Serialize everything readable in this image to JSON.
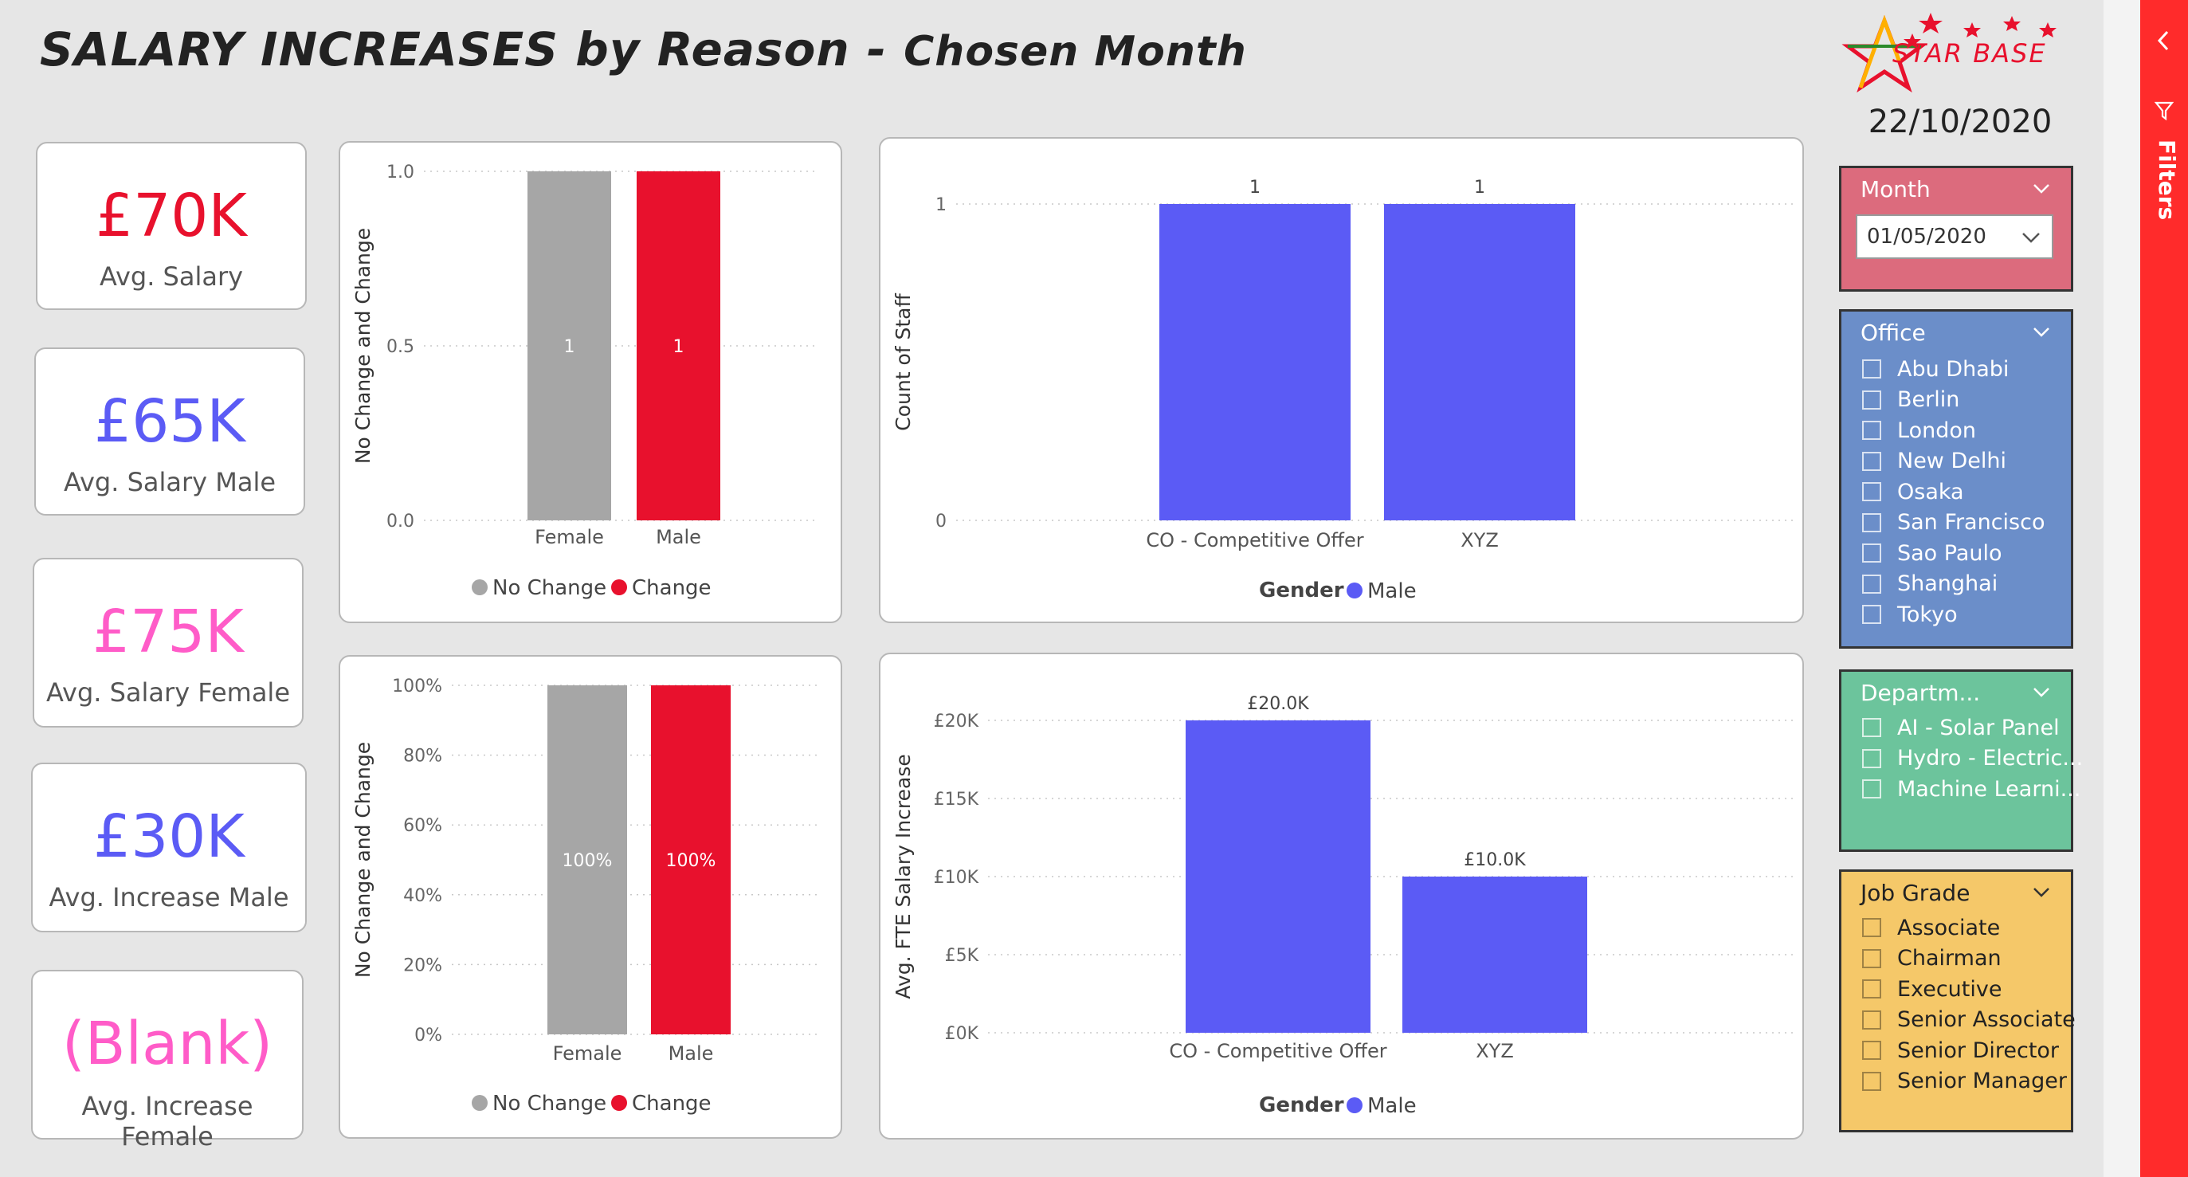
{
  "title": {
    "main": "SALARY INCREASES by Reason - ",
    "sub": "Chosen Month"
  },
  "logo": {
    "text": "STAR BASE"
  },
  "report_date": "22/10/2020",
  "kpis": [
    {
      "value": "£70K",
      "label": "Avg. Salary",
      "color": "#e8112d"
    },
    {
      "value": "£65K",
      "label": "Avg. Salary Male",
      "color": "#5b5bf5"
    },
    {
      "value": "£75K",
      "label": "Avg. Salary Female",
      "color": "#ff5cc8"
    },
    {
      "value": "£30K",
      "label": "Avg. Increase Male",
      "color": "#5b5bf5"
    },
    {
      "value": "(Blank)",
      "label": "Avg. Increase Female",
      "color": "#ff5cc8"
    }
  ],
  "chart_data": [
    {
      "type": "bar",
      "categories": [
        "Female",
        "Male"
      ],
      "values": [
        1,
        1
      ],
      "bar_colors": [
        "#a6a6a6",
        "#e8112d"
      ],
      "data_labels": [
        "1",
        "1"
      ],
      "ylabel": "No Change and Change",
      "yticks": [
        "1.0",
        "0.5",
        "0.0"
      ],
      "ylim": [
        0,
        1
      ],
      "legend": [
        {
          "name": "No Change",
          "color": "#a6a6a6"
        },
        {
          "name": "Change",
          "color": "#e8112d"
        }
      ]
    },
    {
      "type": "bar",
      "categories": [
        "Female",
        "Male"
      ],
      "values": [
        100,
        100
      ],
      "bar_colors": [
        "#a6a6a6",
        "#e8112d"
      ],
      "data_labels": [
        "100%",
        "100%"
      ],
      "ylabel": "No Change and Change",
      "yticks": [
        "100%",
        "80%",
        "60%",
        "40%",
        "20%",
        "0%"
      ],
      "ylim": [
        0,
        100
      ],
      "legend": [
        {
          "name": "No Change",
          "color": "#a6a6a6"
        },
        {
          "name": "Change",
          "color": "#e8112d"
        }
      ]
    },
    {
      "type": "bar",
      "categories": [
        "CO - Competitive Offer",
        "XYZ"
      ],
      "values": [
        1,
        1
      ],
      "bar_colors": [
        "#5b5bf5",
        "#5b5bf5"
      ],
      "data_labels": [
        "1",
        "1"
      ],
      "ylabel": "Count of Staff",
      "yticks": [
        "1",
        "0"
      ],
      "ylim": [
        0,
        1
      ],
      "legend_title": "Gender",
      "legend": [
        {
          "name": "Male",
          "color": "#5b5bf5"
        }
      ]
    },
    {
      "type": "bar",
      "categories": [
        "CO - Competitive Offer",
        "XYZ"
      ],
      "values": [
        20000,
        10000
      ],
      "bar_colors": [
        "#5b5bf5",
        "#5b5bf5"
      ],
      "data_labels": [
        "£20.0K",
        "£10.0K"
      ],
      "ylabel": "Avg. FTE Salary Increase",
      "yticks": [
        "£20K",
        "£15K",
        "£10K",
        "£5K",
        "£0K"
      ],
      "ylim": [
        0,
        20000
      ],
      "legend_title": "Gender",
      "legend": [
        {
          "name": "Male",
          "color": "#5b5bf5"
        }
      ]
    }
  ],
  "slicers": {
    "month": {
      "title": "Month",
      "selected": "01/05/2020",
      "color": "#dc6b7d"
    },
    "office": {
      "title": "Office",
      "color": "#6b8ec9",
      "items": [
        "Abu Dhabi",
        "Berlin",
        "London",
        "New Delhi",
        "Osaka",
        "San Francisco",
        "Sao Paulo",
        "Shanghai",
        "Tokyo"
      ]
    },
    "department": {
      "title": "Departm...",
      "color": "#6cc49c",
      "items": [
        "AI - Solar Panel",
        "Hydro - Electric...",
        "Machine Learni..."
      ]
    },
    "job_grade": {
      "title": "Job Grade",
      "color": "#f5c869",
      "items": [
        "Associate",
        "Chairman",
        "Executive",
        "Senior Associate",
        "Senior Director",
        "Senior Manager"
      ]
    }
  },
  "filters_pane": {
    "label": "Filters"
  }
}
